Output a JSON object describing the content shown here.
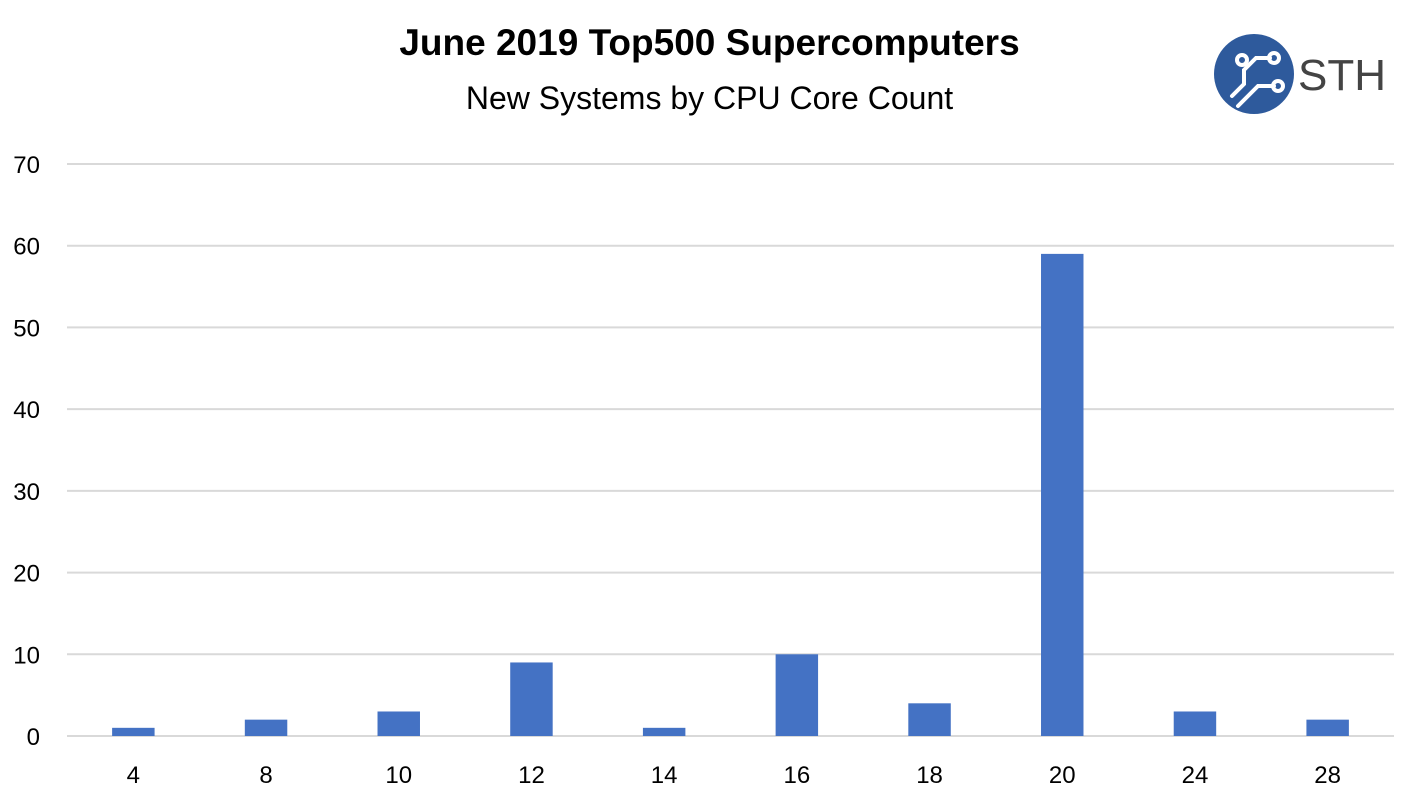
{
  "chart_data": {
    "type": "bar",
    "title": "June 2019 Top500 Supercomputers",
    "subtitle": "New Systems by CPU Core Count",
    "categories": [
      "4",
      "8",
      "10",
      "12",
      "14",
      "16",
      "18",
      "20",
      "24",
      "28"
    ],
    "values": [
      1,
      2,
      3,
      9,
      1,
      10,
      4,
      59,
      3,
      2
    ],
    "ylim": [
      0,
      70
    ],
    "yticks": [
      0,
      10,
      20,
      30,
      40,
      50,
      60,
      70
    ],
    "grid": true,
    "bar_color": "#4472C4",
    "grid_color": "#d9d9d9",
    "legend": "none"
  },
  "logo": {
    "text": "STH",
    "color": "#2e5a9c"
  }
}
